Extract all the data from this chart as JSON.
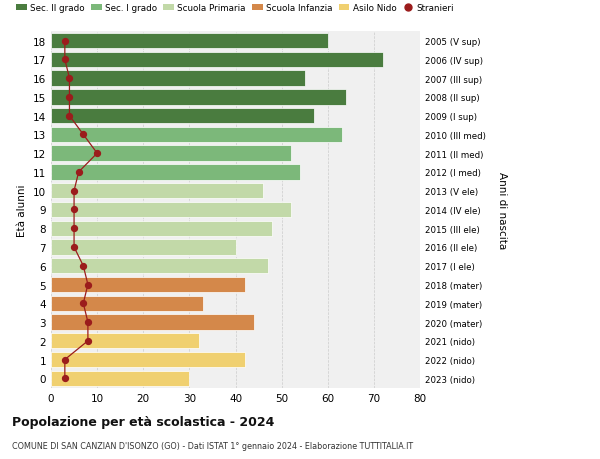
{
  "ages": [
    18,
    17,
    16,
    15,
    14,
    13,
    12,
    11,
    10,
    9,
    8,
    7,
    6,
    5,
    4,
    3,
    2,
    1,
    0
  ],
  "bar_values": [
    60,
    72,
    55,
    64,
    57,
    63,
    52,
    54,
    46,
    52,
    48,
    40,
    47,
    42,
    33,
    44,
    32,
    42,
    30
  ],
  "bar_colors": [
    "#4a7c3f",
    "#4a7c3f",
    "#4a7c3f",
    "#4a7c3f",
    "#4a7c3f",
    "#7cb87a",
    "#7cb87a",
    "#7cb87a",
    "#c2d9a8",
    "#c2d9a8",
    "#c2d9a8",
    "#c2d9a8",
    "#c2d9a8",
    "#d4884a",
    "#d4884a",
    "#d4884a",
    "#f0d070",
    "#f0d070",
    "#f0d070"
  ],
  "stranieri_values": [
    3,
    3,
    4,
    4,
    4,
    7,
    10,
    6,
    5,
    5,
    5,
    5,
    7,
    8,
    7,
    8,
    8,
    3,
    3
  ],
  "right_labels": [
    "2005 (V sup)",
    "2006 (IV sup)",
    "2007 (III sup)",
    "2008 (II sup)",
    "2009 (I sup)",
    "2010 (III med)",
    "2011 (II med)",
    "2012 (I med)",
    "2013 (V ele)",
    "2014 (IV ele)",
    "2015 (III ele)",
    "2016 (II ele)",
    "2017 (I ele)",
    "2018 (mater)",
    "2019 (mater)",
    "2020 (mater)",
    "2021 (nido)",
    "2022 (nido)",
    "2023 (nido)"
  ],
  "legend_labels": [
    "Sec. II grado",
    "Sec. I grado",
    "Scuola Primaria",
    "Scuola Infanzia",
    "Asilo Nido",
    "Stranieri"
  ],
  "legend_colors": [
    "#4a7c3f",
    "#7cb87a",
    "#c2d9a8",
    "#d4884a",
    "#f0d070",
    "#a02020"
  ],
  "ylabel": "Età alunni",
  "right_ylabel": "Anni di nascita",
  "title": "Popolazione per età scolastica - 2024",
  "subtitle": "COMUNE DI SAN CANZIAN D'ISONZO (GO) - Dati ISTAT 1° gennaio 2024 - Elaborazione TUTTITALIA.IT",
  "xlim": [
    0,
    80
  ],
  "xticks": [
    0,
    10,
    20,
    30,
    40,
    50,
    60,
    70,
    80
  ],
  "bg_color": "#ffffff",
  "bar_bg_color": "#f0f0f0",
  "stranieri_color": "#9b1c1c",
  "line_color": "#9b1c1c"
}
